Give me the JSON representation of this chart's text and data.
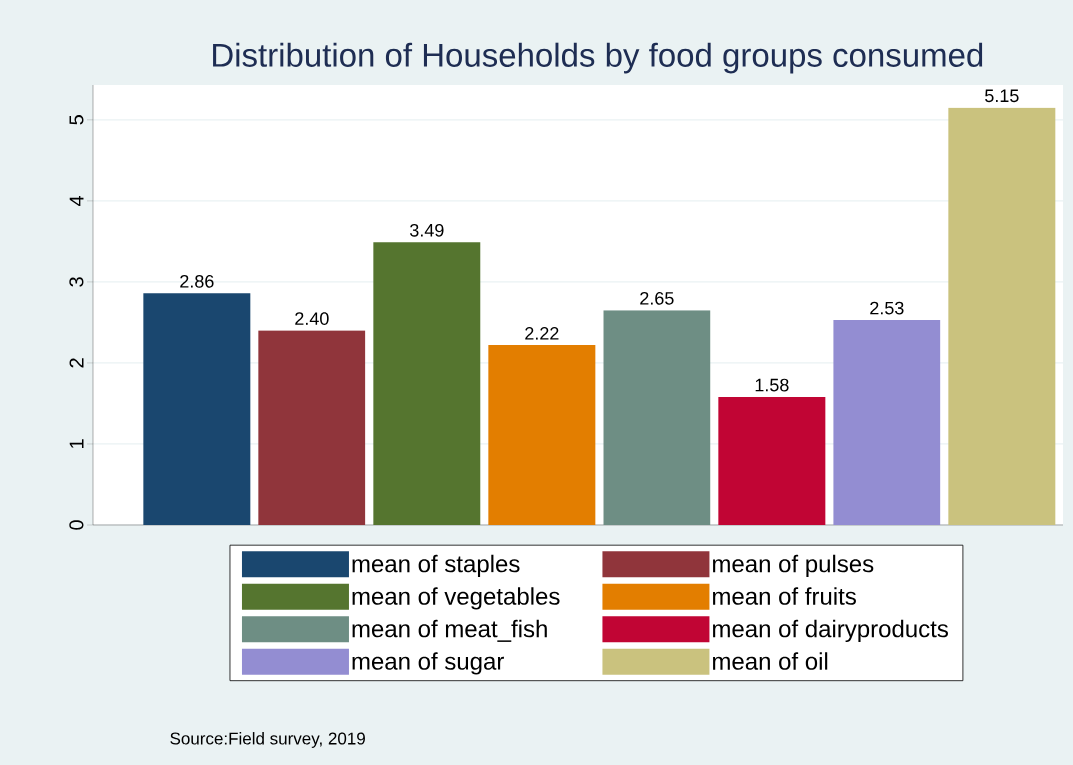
{
  "chart_data": {
    "type": "bar",
    "title": "Distribution of Households by food groups consumed",
    "categories": [
      null
    ],
    "series": [
      {
        "name": "mean of staples",
        "color": "#1a476f",
        "values": [
          2.86
        ],
        "value_labels": [
          "2.86"
        ]
      },
      {
        "name": "mean of pulses",
        "color": "#90353b",
        "values": [
          2.4
        ],
        "value_labels": [
          "2.40"
        ]
      },
      {
        "name": "mean of vegetables",
        "color": "#55752f",
        "values": [
          3.49
        ],
        "value_labels": [
          "3.49"
        ]
      },
      {
        "name": "mean of fruits",
        "color": "#e37e00",
        "values": [
          2.22
        ],
        "value_labels": [
          "2.22"
        ]
      },
      {
        "name": "mean of meat_fish",
        "color": "#6e8e84",
        "values": [
          2.65
        ],
        "value_labels": [
          "2.65"
        ]
      },
      {
        "name": "mean of dairyproducts",
        "color": "#c10534",
        "values": [
          1.58
        ],
        "value_labels": [
          "1.58"
        ]
      },
      {
        "name": "mean of sugar",
        "color": "#938dd2",
        "values": [
          2.53
        ],
        "value_labels": [
          "2.53"
        ]
      },
      {
        "name": "mean of oil",
        "color": "#cac27e",
        "values": [
          5.15
        ],
        "value_labels": [
          "5.15"
        ]
      }
    ],
    "ylim": [
      0,
      5.43
    ],
    "yticks": [
      0,
      1,
      2,
      3,
      4,
      5
    ],
    "grid": "y",
    "legend": "bottom",
    "tick_labels": "y",
    "annotations": [
      "Source:Field survey, 2019"
    ]
  }
}
